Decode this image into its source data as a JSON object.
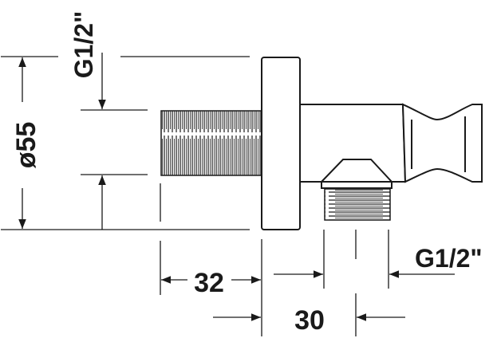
{
  "drawing": {
    "line_color": "#1a1a1a",
    "dimensions": {
      "diameter": "ø55",
      "inlet_thread": "G1/2\"",
      "outlet_thread": "G1/2\"",
      "depth": "32",
      "outlet_offset": "30"
    }
  }
}
